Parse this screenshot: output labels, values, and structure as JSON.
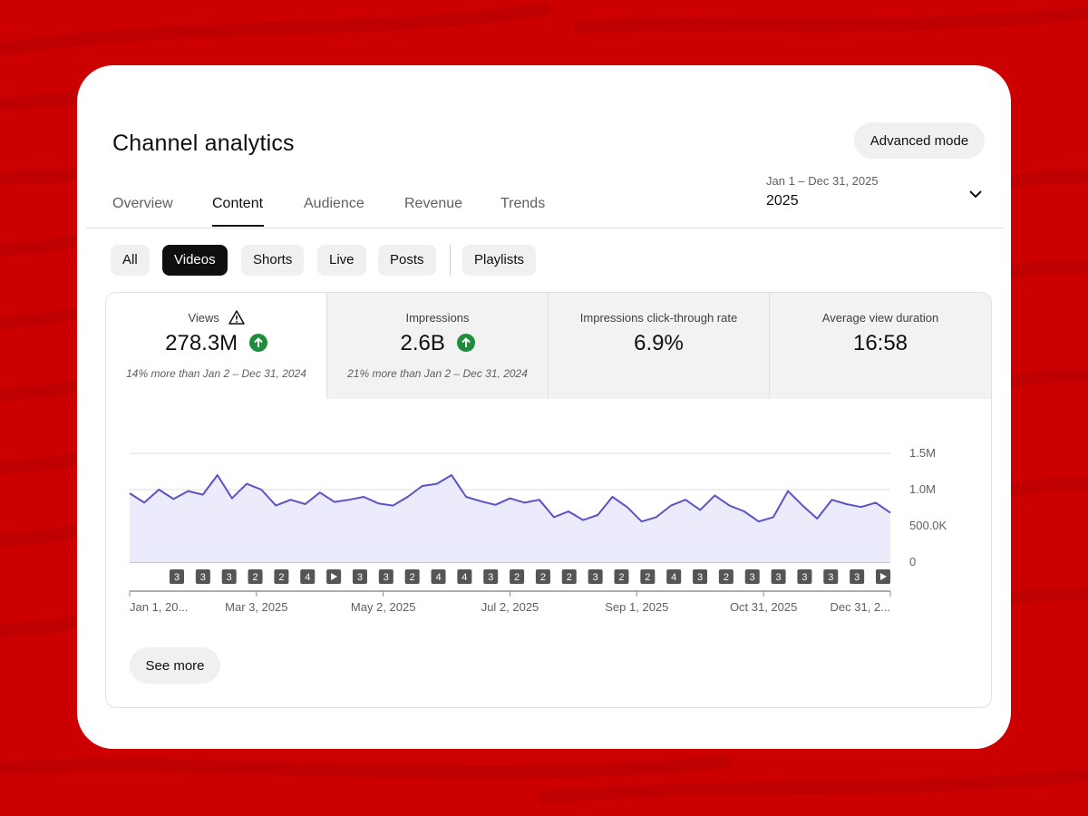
{
  "header": {
    "title": "Channel analytics",
    "advanced_mode_label": "Advanced mode"
  },
  "tabs": [
    {
      "label": "Overview",
      "active": false
    },
    {
      "label": "Content",
      "active": true
    },
    {
      "label": "Audience",
      "active": false
    },
    {
      "label": "Revenue",
      "active": false
    },
    {
      "label": "Trends",
      "active": false
    }
  ],
  "date_range": {
    "range_label": "Jan 1 – Dec 31, 2025",
    "value": "2025"
  },
  "filters": [
    {
      "label": "All",
      "active": false
    },
    {
      "label": "Videos",
      "active": true
    },
    {
      "label": "Shorts",
      "active": false
    },
    {
      "label": "Live",
      "active": false
    },
    {
      "label": "Posts",
      "active": false
    },
    {
      "label": "Playlists",
      "active": false
    }
  ],
  "metrics": [
    {
      "label": "Views",
      "value": "278.3M",
      "comparison": "14% more than Jan 2 – Dec 31, 2024",
      "trend": "up",
      "warning": true
    },
    {
      "label": "Impressions",
      "value": "2.6B",
      "comparison": "21% more than Jan 2 – Dec 31, 2024",
      "trend": "up",
      "warning": false
    },
    {
      "label": "Impressions click-through rate",
      "value": "6.9%",
      "comparison": "",
      "trend": "none",
      "warning": false
    },
    {
      "label": "Average view duration",
      "value": "16:58",
      "comparison": "",
      "trend": "none",
      "warning": false
    }
  ],
  "colors": {
    "background": "#cc0000",
    "line": "#5b52c7",
    "area": "#ecebfb",
    "trend_up": "#1e8e3e"
  },
  "chart_data": {
    "type": "area",
    "y_ticks": [
      {
        "value": 1500000,
        "label": "1.5M"
      },
      {
        "value": 1000000,
        "label": "1.0M"
      },
      {
        "value": 500000,
        "label": "500.0K"
      },
      {
        "value": 0,
        "label": "0"
      }
    ],
    "ylim": [
      0,
      1500000
    ],
    "x_tick_labels": [
      "Jan 1, 20...",
      "Mar 3, 2025",
      "May 2, 2025",
      "Jul 2, 2025",
      "Sep 1, 2025",
      "Oct 31, 2025",
      "Dec 31, 2..."
    ],
    "series": [
      {
        "dates": [
          "2025-01-01",
          "2025-01-08",
          "2025-01-15",
          "2025-01-22",
          "2025-01-29",
          "2025-02-05",
          "2025-02-12",
          "2025-02-19",
          "2025-02-26",
          "2025-03-05",
          "2025-03-12",
          "2025-03-19",
          "2025-03-26",
          "2025-04-02",
          "2025-04-09",
          "2025-04-16",
          "2025-04-23",
          "2025-04-30",
          "2025-05-07",
          "2025-05-14",
          "2025-05-21",
          "2025-05-28",
          "2025-06-04",
          "2025-06-11",
          "2025-06-18",
          "2025-06-25",
          "2025-07-02",
          "2025-07-09",
          "2025-07-16",
          "2025-07-23",
          "2025-07-30",
          "2025-08-06",
          "2025-08-13",
          "2025-08-20",
          "2025-08-27",
          "2025-09-03",
          "2025-09-10",
          "2025-09-17",
          "2025-09-24",
          "2025-10-01",
          "2025-10-08",
          "2025-10-15",
          "2025-10-22",
          "2025-10-29",
          "2025-11-05",
          "2025-11-12",
          "2025-11-19",
          "2025-11-26",
          "2025-12-03",
          "2025-12-10",
          "2025-12-17",
          "2025-12-24",
          "2025-12-31"
        ],
        "values": [
          950000,
          820000,
          1000000,
          870000,
          980000,
          930000,
          1200000,
          880000,
          1080000,
          1000000,
          780000,
          860000,
          800000,
          960000,
          830000,
          860000,
          900000,
          810000,
          780000,
          900000,
          1050000,
          1080000,
          1200000,
          900000,
          840000,
          790000,
          880000,
          820000,
          860000,
          620000,
          700000,
          580000,
          650000,
          900000,
          760000,
          560000,
          620000,
          780000,
          860000,
          720000,
          920000,
          780000,
          700000,
          560000,
          620000,
          980000,
          780000,
          600000,
          860000,
          800000,
          760000,
          820000,
          680000
        ]
      }
    ],
    "markers": [
      "3",
      "3",
      "3",
      "2",
      "2",
      "4",
      "play",
      "3",
      "3",
      "2",
      "4",
      "4",
      "3",
      "2",
      "2",
      "2",
      "3",
      "2",
      "2",
      "4",
      "3",
      "2",
      "3",
      "3",
      "3",
      "3",
      "3",
      "play"
    ]
  },
  "see_more_label": "See more"
}
